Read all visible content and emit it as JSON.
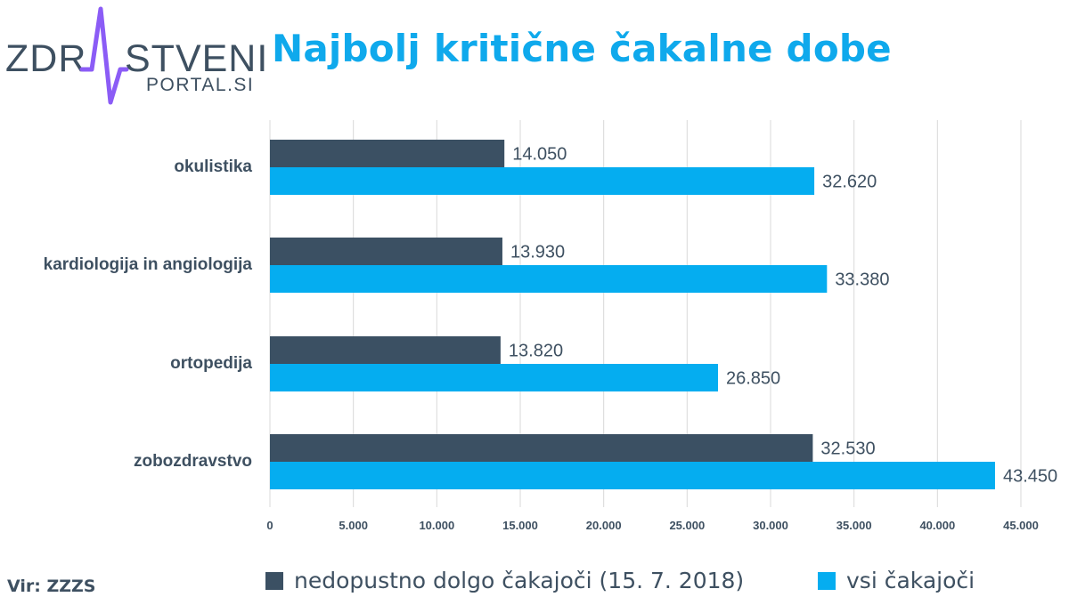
{
  "logo": {
    "part1": "ZDR",
    "part2": "STVENI",
    "part3": "PORTAL.SI",
    "color_dark": "#3e5061",
    "color_accent": "#8b5cf6"
  },
  "title": "Najbolj kritične čakalne dobe",
  "source": "Vir: ZZZS",
  "colors": {
    "dark": "#3b5063",
    "light": "#05adf0",
    "grid": "#d9d9d9",
    "text": "#3e5061"
  },
  "chart_data": {
    "type": "bar",
    "orientation": "horizontal",
    "title": "Najbolj kritične čakalne dobe",
    "categories": [
      "okulistika",
      "kardiologija in angiologija",
      "ortopedija",
      "zobozdravstvo"
    ],
    "series": [
      {
        "name": "nedopustno dolgo čakajoči (15. 7. 2018)",
        "values": [
          14050,
          13930,
          13820,
          32530
        ],
        "labels": [
          "14.050",
          "13.930",
          "13.820",
          "32.530"
        ],
        "color": "#3b5063"
      },
      {
        "name": "vsi čakajoči",
        "values": [
          32620,
          33380,
          26850,
          43450
        ],
        "labels": [
          "32.620",
          "33.380",
          "26.850",
          "43.450"
        ],
        "color": "#05adf0"
      }
    ],
    "xlim": [
      0,
      45000
    ],
    "ticks": [
      0,
      5000,
      10000,
      15000,
      20000,
      25000,
      30000,
      35000,
      40000,
      45000
    ],
    "tick_labels": [
      "0",
      "5.000",
      "10.000",
      "15.000",
      "20.000",
      "25.000",
      "30.000",
      "35.000",
      "40.000",
      "45.000"
    ],
    "grid": true,
    "legend_position": "bottom"
  }
}
